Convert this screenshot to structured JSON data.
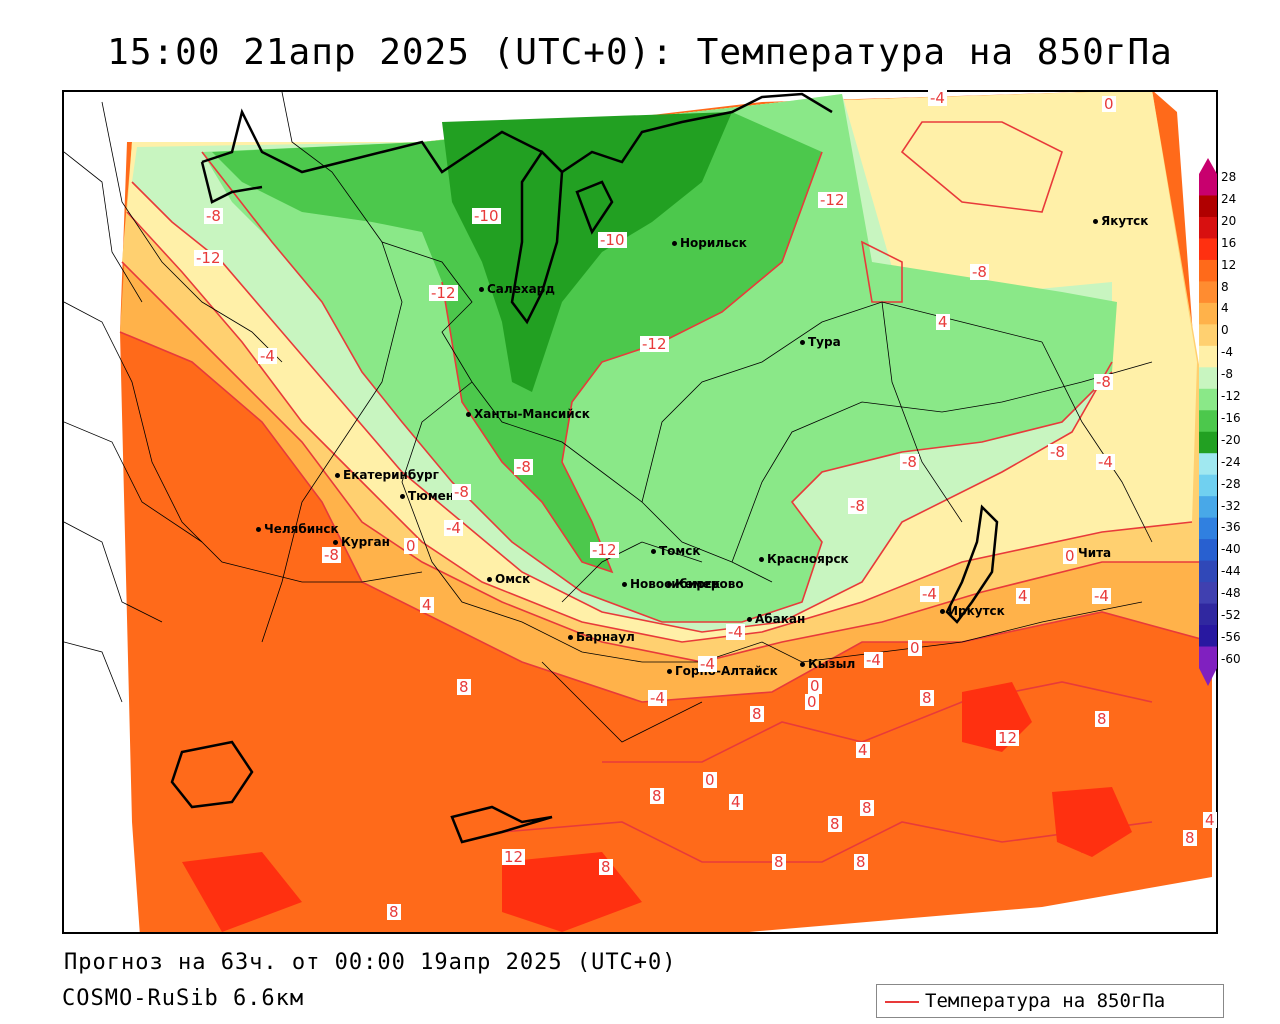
{
  "title": "15:00 21апр 2025 (UTC+0): Температура на 850гПа",
  "footer": {
    "forecast": "Прогноз на 63ч. от 00:00 19апр 2025 (UTC+0)",
    "model": "COSMO-RuSib 6.6км"
  },
  "legend": {
    "label": "Температура на 850гПа",
    "color": "#e83a3a"
  },
  "colorbar": {
    "ticks": [
      "28",
      "24",
      "20",
      "16",
      "12",
      "8",
      "4",
      "0",
      "-4",
      "-8",
      "-12",
      "-16",
      "-20",
      "-24",
      "-28",
      "-32",
      "-36",
      "-40",
      "-44",
      "-48",
      "-52",
      "-56",
      "-60"
    ],
    "colors": [
      "#c8006e",
      "#b00000",
      "#d81010",
      "#ff3010",
      "#ff6a1a",
      "#ff8c30",
      "#ffb24a",
      "#ffd070",
      "#fff0a8",
      "#c8f5c0",
      "#8ae888",
      "#4cc84c",
      "#22a022",
      "#a0e8f0",
      "#70d0f0",
      "#48a8e8",
      "#3080e0",
      "#2860d0",
      "#3048b8",
      "#4040b0",
      "#3028a0",
      "#2818a0",
      "#8020c0"
    ]
  },
  "cities": [
    {
      "name": "Якутск"
    },
    {
      "name": "Норильск"
    },
    {
      "name": "Салехард"
    },
    {
      "name": "Тура"
    },
    {
      "name": "Ханты-Мансийск"
    },
    {
      "name": "Екатеринбург"
    },
    {
      "name": "Тюмень"
    },
    {
      "name": "Челябинск"
    },
    {
      "name": "Курган"
    },
    {
      "name": "Омск"
    },
    {
      "name": "Новосибирск"
    },
    {
      "name": "Томск"
    },
    {
      "name": "Кемерово"
    },
    {
      "name": "Красноярск"
    },
    {
      "name": "Абакан"
    },
    {
      "name": "Барнаул"
    },
    {
      "name": "Горно-Алтайск"
    },
    {
      "name": "Кызыл"
    },
    {
      "name": "Иркутск"
    },
    {
      "name": "Чита"
    }
  ],
  "contour_labels": [
    "-4",
    "0",
    "-8",
    "-10",
    "-10",
    "-12",
    "-12",
    "-8",
    "-4",
    "4",
    "-12",
    "-8",
    "-12",
    "-8",
    "-8",
    "-8",
    "-4",
    "-8",
    "-8",
    "-4",
    "0",
    "-4",
    "-12",
    "0",
    "-4",
    "4",
    "4",
    "-4",
    "-4",
    "-8",
    "-4",
    "0",
    "0",
    "-4",
    "8",
    "0",
    "8",
    "12",
    "8",
    "4",
    "8",
    "0",
    "4",
    "8",
    "8",
    "8",
    "8",
    "12",
    "8",
    "4",
    "8",
    "8",
    "8"
  ]
}
